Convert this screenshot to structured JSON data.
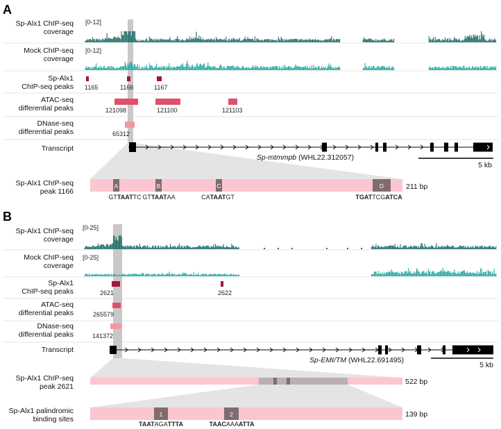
{
  "colors": {
    "sp_cov": "#1e6e66",
    "mock_cov": "#2aa9a3",
    "chip_peak": "#a6163a",
    "atac": "#e0506b",
    "dnase": "#f297a8",
    "highlight": "#c8c8c8",
    "zoom": "#e4e4e4",
    "box_bg": "#fbc6cf",
    "site": "#806c70",
    "track_line": "#e6e6e6"
  },
  "panel_a": {
    "letter": "A",
    "tracks": {
      "sp_cov": "Sp-Alx1 ChIP-seq\ncoverage",
      "mock_cov": "Mock ChIP-seq\ncoverage",
      "chip_peaks": "Sp-Alx1\nChIP-seq peaks",
      "atac": "ATAC-seq\ndifferential peaks",
      "dnase": "DNase-seq\ndifferential peaks",
      "transcript": "Transcript"
    },
    "sp_range": "[0-12]",
    "mock_range": "[0-12]",
    "chip_peak_ids": [
      "1165",
      "1166",
      "1167"
    ],
    "atac_ids": [
      "121098",
      "121100",
      "121103"
    ],
    "dnase_ids": [
      "65312"
    ],
    "gene_name": "Sp-mtmmpb",
    "gene_id": "(WHL22.312057)",
    "scale": "5 kb",
    "zoom": {
      "label": "Sp-Alx1 ChIP-seq\npeak 1166",
      "length": "211 bp",
      "sites": [
        {
          "id": "A",
          "seq": [
            {
              "t": "GT",
              "b": false
            },
            {
              "t": "TAAT",
              "b": true
            },
            {
              "t": "TC",
              "b": false
            }
          ]
        },
        {
          "id": "B",
          "seq": [
            {
              "t": "GT",
              "b": false
            },
            {
              "t": "TAAT",
              "b": true
            },
            {
              "t": "AA",
              "b": false
            }
          ]
        },
        {
          "id": "C",
          "seq": [
            {
              "t": "CA",
              "b": false
            },
            {
              "t": "TAAT",
              "b": true
            },
            {
              "t": "GT",
              "b": false
            }
          ]
        },
        {
          "id": "D",
          "seq": [
            {
              "t": "TGAT",
              "b": true
            },
            {
              "t": "TCG",
              "b": false
            },
            {
              "t": "ATCA",
              "b": true
            }
          ]
        }
      ]
    }
  },
  "panel_b": {
    "letter": "B",
    "tracks": {
      "sp_cov": "Sp-Alx1 ChIP-seq\ncoverage",
      "mock_cov": "Mock ChIP-seq\ncoverage",
      "chip_peaks": "Sp-Alx1\nChIP-seq peaks",
      "atac": "ATAC-seq\ndifferential peaks",
      "dnase": "DNase-seq\ndifferential peaks",
      "transcript": "Transcript"
    },
    "sp_range": "[0-25]",
    "mock_range": "[0-25]",
    "chip_peak_ids": [
      "2621",
      "2622"
    ],
    "atac_ids": [
      "265579"
    ],
    "dnase_ids": [
      "141372"
    ],
    "gene_name": "Sp-EMI/TM",
    "gene_id": "(WHL22.691495)",
    "scale": "5 kb",
    "zoom1": {
      "label": "Sp-Alx1 ChIP-seq\npeak 2621",
      "length": "522 bp"
    },
    "zoom2": {
      "label": "Sp-Alx1 palindromic\nbinding sites",
      "length": "139 bp",
      "sites": [
        {
          "id": "1",
          "seq": [
            {
              "t": "TAAT",
              "b": true
            },
            {
              "t": "AGA",
              "b": false
            },
            {
              "t": "TTTA",
              "b": true
            }
          ]
        },
        {
          "id": "2",
          "seq": [
            {
              "t": "TAAC",
              "b": true
            },
            {
              "t": "AAA",
              "b": false
            },
            {
              "t": "ATTA",
              "b": true
            }
          ]
        }
      ]
    }
  }
}
